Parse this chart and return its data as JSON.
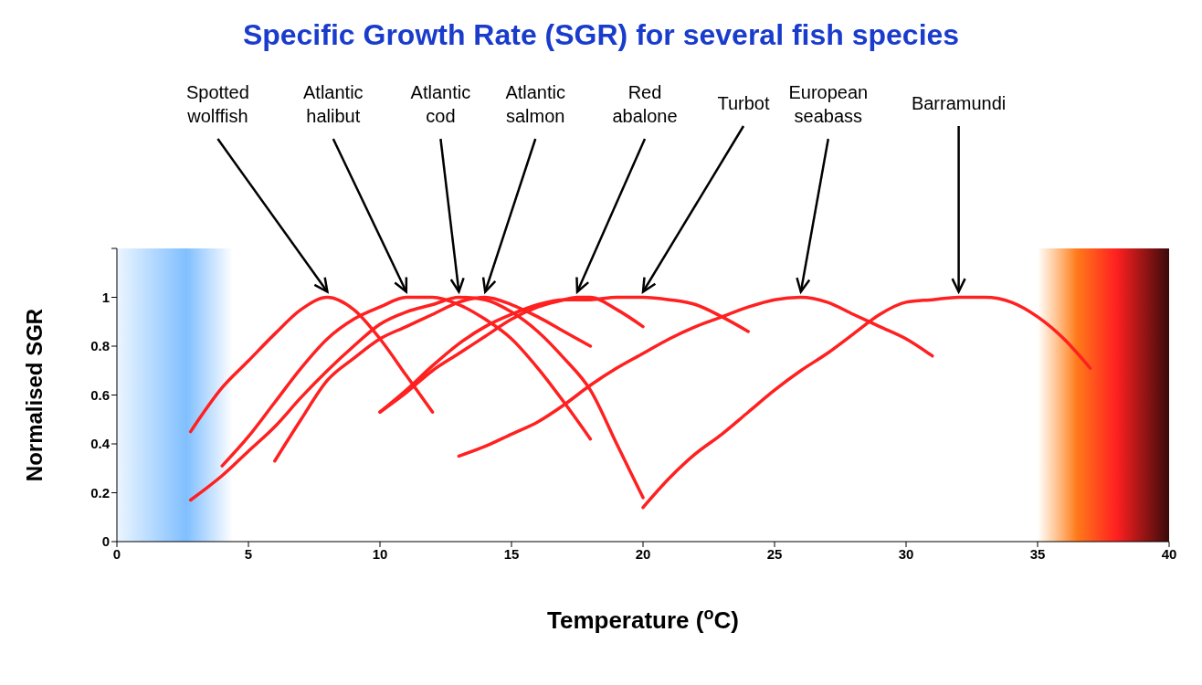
{
  "chart_data": {
    "type": "line",
    "title": "Specific Growth Rate (SGR) for several fish species",
    "xlabel": "Temperature ($^{o}$C)",
    "ylabel": "Normalised SGR",
    "xlim": [
      0,
      40
    ],
    "xticks": [
      0,
      5,
      10,
      15,
      20,
      25,
      30,
      35,
      40
    ],
    "ylim": [
      0,
      1.2
    ],
    "yticks": [
      0,
      0.2,
      0.4,
      0.6,
      0.8,
      1,
      {
        "value": 1.2,
        "label": null
      }
    ],
    "marker": "none",
    "line_style": "solid",
    "series": [
      {
        "color": "#ff2020",
        "x": [
          2.8,
          4,
          5,
          6,
          7,
          8,
          9,
          10,
          11,
          12
        ],
        "values": [
          0.45,
          0.63,
          0.74,
          0.85,
          0.95,
          1.0,
          0.95,
          0.83,
          0.68,
          0.53
        ]
      },
      {
        "color": "#ff2020",
        "x": [
          4,
          5,
          6,
          7,
          8,
          9,
          10,
          11,
          12,
          13,
          14,
          15,
          16,
          17,
          18
        ],
        "values": [
          0.31,
          0.43,
          0.57,
          0.71,
          0.83,
          0.91,
          0.96,
          1.0,
          1.0,
          0.97,
          0.91,
          0.83,
          0.71,
          0.57,
          0.42
        ]
      },
      {
        "color": "#ff2020",
        "x": [
          2.8,
          4,
          5,
          6,
          7,
          8,
          9,
          10,
          11,
          12,
          13,
          14,
          15,
          16,
          17,
          18,
          19,
          20
        ],
        "values": [
          0.17,
          0.27,
          0.37,
          0.47,
          0.59,
          0.7,
          0.8,
          0.89,
          0.94,
          0.97,
          1.0,
          0.99,
          0.94,
          0.86,
          0.75,
          0.62,
          0.4,
          0.18
        ]
      },
      {
        "color": "#ff2020",
        "x": [
          6,
          7,
          8,
          9,
          10,
          11,
          12,
          13,
          14,
          15,
          16,
          17,
          18
        ],
        "values": [
          0.33,
          0.5,
          0.66,
          0.75,
          0.83,
          0.88,
          0.93,
          0.98,
          1.0,
          0.97,
          0.92,
          0.86,
          0.8
        ]
      },
      {
        "color": "#ff2020",
        "x": [
          10,
          11,
          12,
          13,
          14,
          15,
          16,
          17,
          17.5,
          18,
          19,
          20
        ],
        "values": [
          0.53,
          0.61,
          0.7,
          0.77,
          0.84,
          0.91,
          0.96,
          0.99,
          1.0,
          1.0,
          0.95,
          0.88
        ]
      },
      {
        "color": "#ff2020",
        "x": [
          10,
          11,
          12,
          13,
          14,
          15,
          16,
          17,
          18,
          19,
          20,
          21,
          22,
          23,
          24
        ],
        "values": [
          0.53,
          0.62,
          0.72,
          0.81,
          0.88,
          0.93,
          0.97,
          0.99,
          0.99,
          1.0,
          1.0,
          0.99,
          0.97,
          0.92,
          0.86
        ]
      },
      {
        "color": "#ff2020",
        "x": [
          13,
          14,
          15,
          16,
          17,
          18,
          19,
          20,
          21,
          22,
          23,
          24,
          25,
          26,
          27,
          28,
          29,
          30,
          31
        ],
        "values": [
          0.35,
          0.39,
          0.44,
          0.49,
          0.56,
          0.64,
          0.71,
          0.77,
          0.83,
          0.88,
          0.92,
          0.96,
          0.99,
          1.0,
          0.98,
          0.93,
          0.88,
          0.83,
          0.76
        ]
      },
      {
        "color": "#ff2020",
        "x": [
          20,
          21,
          22,
          23,
          24,
          25,
          26,
          27,
          28,
          29,
          30,
          31,
          32,
          33,
          34,
          35,
          36,
          37
        ],
        "values": [
          0.14,
          0.26,
          0.36,
          0.44,
          0.53,
          0.62,
          0.7,
          0.77,
          0.85,
          0.93,
          0.98,
          0.99,
          1.0,
          1.0,
          0.98,
          0.92,
          0.83,
          0.71
        ]
      }
    ],
    "bands": [
      {
        "axis": "x",
        "from": 0,
        "to": 4.4,
        "color": "#80bfff"
      },
      {
        "axis": "x",
        "from": 35,
        "to": 40,
        "color": "#ff2020"
      }
    ],
    "annotations": [
      {
        "text": "Spotted wolffish",
        "x": 8,
        "y": 1
      },
      {
        "text": "Atlantic halibut",
        "x": 11,
        "y": 1
      },
      {
        "text": "Atlantic cod",
        "x": 13,
        "y": 1
      },
      {
        "text": "Atlantic salmon",
        "x": 14,
        "y": 1
      },
      {
        "text": "Red abalone",
        "x": 17.5,
        "y": 1
      },
      {
        "text": "Turbot",
        "x": 20,
        "y": 1
      },
      {
        "text": "European seabass",
        "x": 26,
        "y": 1
      },
      {
        "text": "Barramundi",
        "x": 32,
        "y": 1
      }
    ]
  }
}
